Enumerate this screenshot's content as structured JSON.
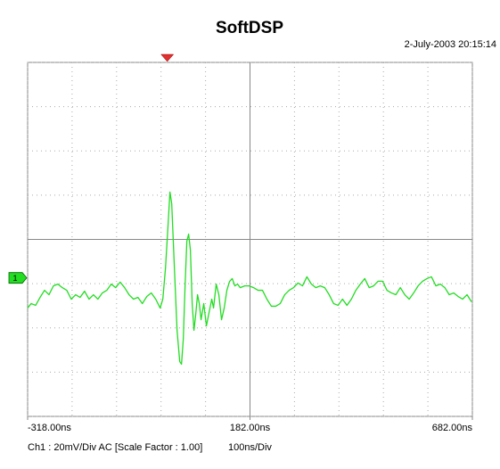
{
  "chart_data": {
    "type": "line",
    "title": "SoftDSP",
    "timestamp": "2-July-2003 20:15:14",
    "channel_info": "Ch1 : 20mV/Div  AC  [Scale Factor : 1.00]",
    "timebase": "100ns/Div",
    "channel_label": "1",
    "ground_level": -17.4,
    "trigger_x": -4,
    "xlim": [
      -318,
      682
    ],
    "ylim": [
      -80,
      80
    ],
    "xticks": [
      {
        "value": -318,
        "label": "-318.00ns"
      },
      {
        "value": 182,
        "label": "182.00ns"
      },
      {
        "value": 682,
        "label": "682.00ns"
      }
    ],
    "xgrid": [
      -318,
      -218,
      -118,
      -18,
      82,
      182,
      282,
      382,
      482,
      582,
      682
    ],
    "ygrid": [
      -80,
      -60,
      -40,
      -20,
      0,
      20,
      40,
      60,
      80
    ],
    "grid": true,
    "series": [
      {
        "name": "Ch1",
        "color": "#22dd22",
        "x": [
          -318,
          -310,
          -300,
          -290,
          -280,
          -270,
          -260,
          -250,
          -240,
          -230,
          -220,
          -210,
          -200,
          -190,
          -180,
          -170,
          -160,
          -150,
          -140,
          -130,
          -120,
          -110,
          -100,
          -90,
          -80,
          -70,
          -60,
          -50,
          -40,
          -30,
          -20,
          -14,
          -8,
          -2,
          2,
          6,
          12,
          18,
          24,
          28,
          32,
          36,
          40,
          44,
          48,
          52,
          56,
          60,
          64,
          68,
          72,
          78,
          84,
          90,
          96,
          100,
          106,
          112,
          118,
          124,
          130,
          136,
          142,
          148,
          154,
          160,
          170,
          180,
          190,
          200,
          210,
          220,
          230,
          240,
          250,
          260,
          270,
          280,
          290,
          300,
          310,
          320,
          330,
          340,
          350,
          360,
          370,
          380,
          390,
          400,
          410,
          420,
          430,
          440,
          450,
          460,
          470,
          480,
          490,
          500,
          510,
          520,
          530,
          540,
          550,
          560,
          570,
          580,
          590,
          600,
          610,
          620,
          630,
          640,
          650,
          660,
          670,
          680
        ],
        "values": [
          -31.0,
          -29.0,
          -29.8,
          -26.2,
          -23.0,
          -25.0,
          -21.0,
          -20.2,
          -21.8,
          -23.0,
          -27.0,
          -25.0,
          -26.2,
          -23.4,
          -27.0,
          -25.0,
          -27.0,
          -24.2,
          -23.0,
          -20.2,
          -21.8,
          -19.3,
          -21.8,
          -25.0,
          -27.0,
          -26.2,
          -29.0,
          -25.8,
          -24.2,
          -27.0,
          -31.0,
          -27.0,
          -12.9,
          7.3,
          21.4,
          16.1,
          -12.9,
          -41.1,
          -55.2,
          -56.4,
          -45.1,
          -21.0,
          -0.8,
          2.4,
          -4.8,
          -29.0,
          -41.1,
          -33.9,
          -25.0,
          -29.0,
          -36.3,
          -29.0,
          -39.1,
          -33.0,
          -27.0,
          -31.0,
          -20.2,
          -25.0,
          -36.3,
          -31.0,
          -23.0,
          -19.0,
          -17.7,
          -21.0,
          -20.2,
          -21.8,
          -21.0,
          -21.0,
          -21.8,
          -23.0,
          -23.0,
          -27.0,
          -30.2,
          -30.2,
          -29.0,
          -25.0,
          -23.0,
          -21.8,
          -19.7,
          -21.0,
          -16.9,
          -20.2,
          -21.8,
          -21.0,
          -21.8,
          -25.0,
          -29.0,
          -29.8,
          -27.0,
          -29.8,
          -27.0,
          -23.0,
          -20.2,
          -17.7,
          -21.8,
          -21.0,
          -18.9,
          -18.9,
          -23.0,
          -24.2,
          -25.0,
          -21.8,
          -25.0,
          -27.0,
          -24.2,
          -21.0,
          -18.9,
          -17.7,
          -16.9,
          -21.0,
          -20.2,
          -21.8,
          -25.0,
          -24.2,
          -25.8,
          -27.0,
          -25.0,
          -28.2
        ]
      }
    ]
  }
}
